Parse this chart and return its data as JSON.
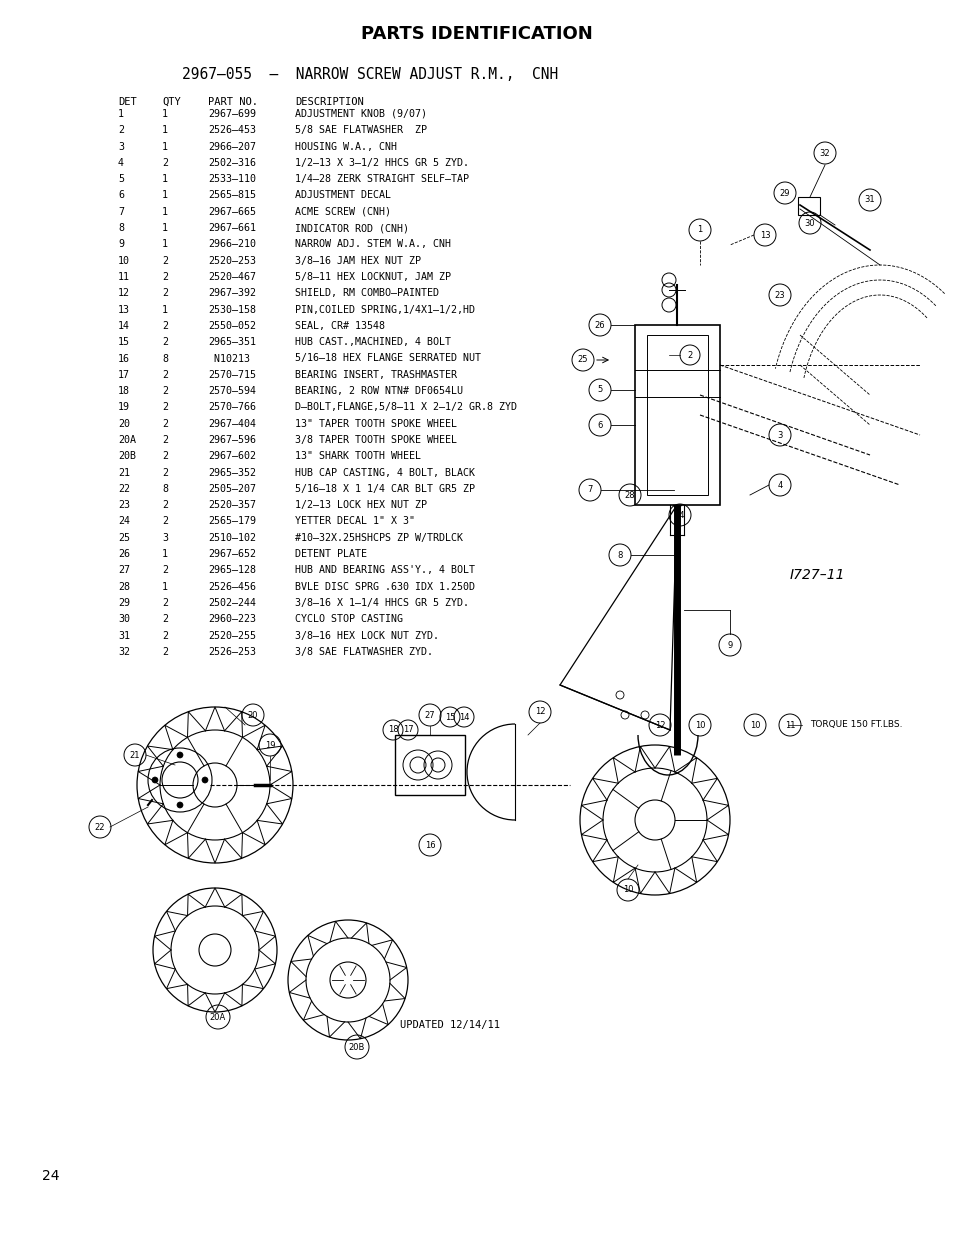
{
  "title": "PARTS IDENTIFICATION",
  "subtitle": "2967–055  –  NARROW SCREW ADJUST R.M.,  CNH",
  "page_number": "24",
  "col_headers": [
    "DET",
    "QTY",
    "PART NO.",
    "DESCRIPTION"
  ],
  "parts": [
    [
      "1",
      "1",
      "2967–699",
      "ADJUSTMENT KNOB (9/07)"
    ],
    [
      "2",
      "1",
      "2526–453",
      "5/8 SAE FLATWASHER  ZP"
    ],
    [
      "3",
      "1",
      "2966–207",
      "HOUSING W.A., CNH"
    ],
    [
      "4",
      "2",
      "2502–316",
      "1/2–13 X 3–1/2 HHCS GR 5 ZYD."
    ],
    [
      "5",
      "1",
      "2533–110",
      "1/4–28 ZERK STRAIGHT SELF–TAP"
    ],
    [
      "6",
      "1",
      "2565–815",
      "ADJUSTMENT DECAL"
    ],
    [
      "7",
      "1",
      "2967–665",
      "ACME SCREW (CNH)"
    ],
    [
      "8",
      "1",
      "2967–661",
      "INDICATOR ROD (CNH)"
    ],
    [
      "9",
      "1",
      "2966–210",
      "NARROW ADJ. STEM W.A., CNH"
    ],
    [
      "10",
      "2",
      "2520–253",
      "3/8–16 JAM HEX NUT ZP"
    ],
    [
      "11",
      "2",
      "2520–467",
      "5/8–11 HEX LOCKNUT, JAM ZP"
    ],
    [
      "12",
      "2",
      "2967–392",
      "SHIELD, RM COMBO–PAINTED"
    ],
    [
      "13",
      "1",
      "2530–158",
      "PIN,COILED SPRING,1/4X1–1/2,HD"
    ],
    [
      "14",
      "2",
      "2550–052",
      "SEAL, CR# 13548"
    ],
    [
      "15",
      "2",
      "2965–351",
      "HUB CAST.,MACHINED, 4 BOLT"
    ],
    [
      "16",
      "8",
      " N10213",
      "5/16–18 HEX FLANGE SERRATED NUT"
    ],
    [
      "17",
      "2",
      "2570–715",
      "BEARING INSERT, TRASHMASTER"
    ],
    [
      "18",
      "2",
      "2570–594",
      "BEARING, 2 ROW NTN# DF0654LU"
    ],
    [
      "19",
      "2",
      "2570–766",
      "D–BOLT,FLANGE,5/8–11 X 2–1/2 GR.8 ZYD"
    ],
    [
      "20",
      "2",
      "2967–404",
      "13\" TAPER TOOTH SPOKE WHEEL"
    ],
    [
      "20A",
      "2",
      "2967–596",
      "3/8 TAPER TOOTH SPOKE WHEEL"
    ],
    [
      "20B",
      "2",
      "2967–602",
      "13\" SHARK TOOTH WHEEL"
    ],
    [
      "21",
      "2",
      "2965–352",
      "HUB CAP CASTING, 4 BOLT, BLACK"
    ],
    [
      "22",
      "8",
      "2505–207",
      "5/16–18 X 1 1/4 CAR BLT GR5 ZP"
    ],
    [
      "23",
      "2",
      "2520–357",
      "1/2–13 LOCK HEX NUT ZP"
    ],
    [
      "24",
      "2",
      "2565–179",
      "YETTER DECAL 1\" X 3\""
    ],
    [
      "25",
      "3",
      "2510–102",
      "#10–32X.25HSHCPS ZP W/TRDLCK"
    ],
    [
      "26",
      "1",
      "2967–652",
      "DETENT PLATE"
    ],
    [
      "27",
      "2",
      "2965–128",
      "HUB AND BEARING ASS'Y., 4 BOLT"
    ],
    [
      "28",
      "1",
      "2526–456",
      "BVLE DISC SPRG .630 IDX 1.250D"
    ],
    [
      "29",
      "2",
      "2502–244",
      "3/8–16 X 1–1/4 HHCS GR 5 ZYD."
    ],
    [
      "30",
      "2",
      "2960–223",
      "CYCLO STOP CASTING"
    ],
    [
      "31",
      "2",
      "2520–255",
      "3/8–16 HEX LOCK NUT ZYD."
    ],
    [
      "32",
      "2",
      "2526–253",
      "3/8 SAE FLATWASHER ZYD."
    ]
  ],
  "diagram_note": "I727–11",
  "torque_note": "TORQUE 150 FT.LBS.",
  "updated_note": "UPDATED 12/14/11",
  "bg_color": "#ffffff",
  "text_color": "#000000",
  "title_fontsize": 13,
  "subtitle_fontsize": 10.5,
  "table_fontsize": 7.2,
  "header_fontsize": 7.5
}
